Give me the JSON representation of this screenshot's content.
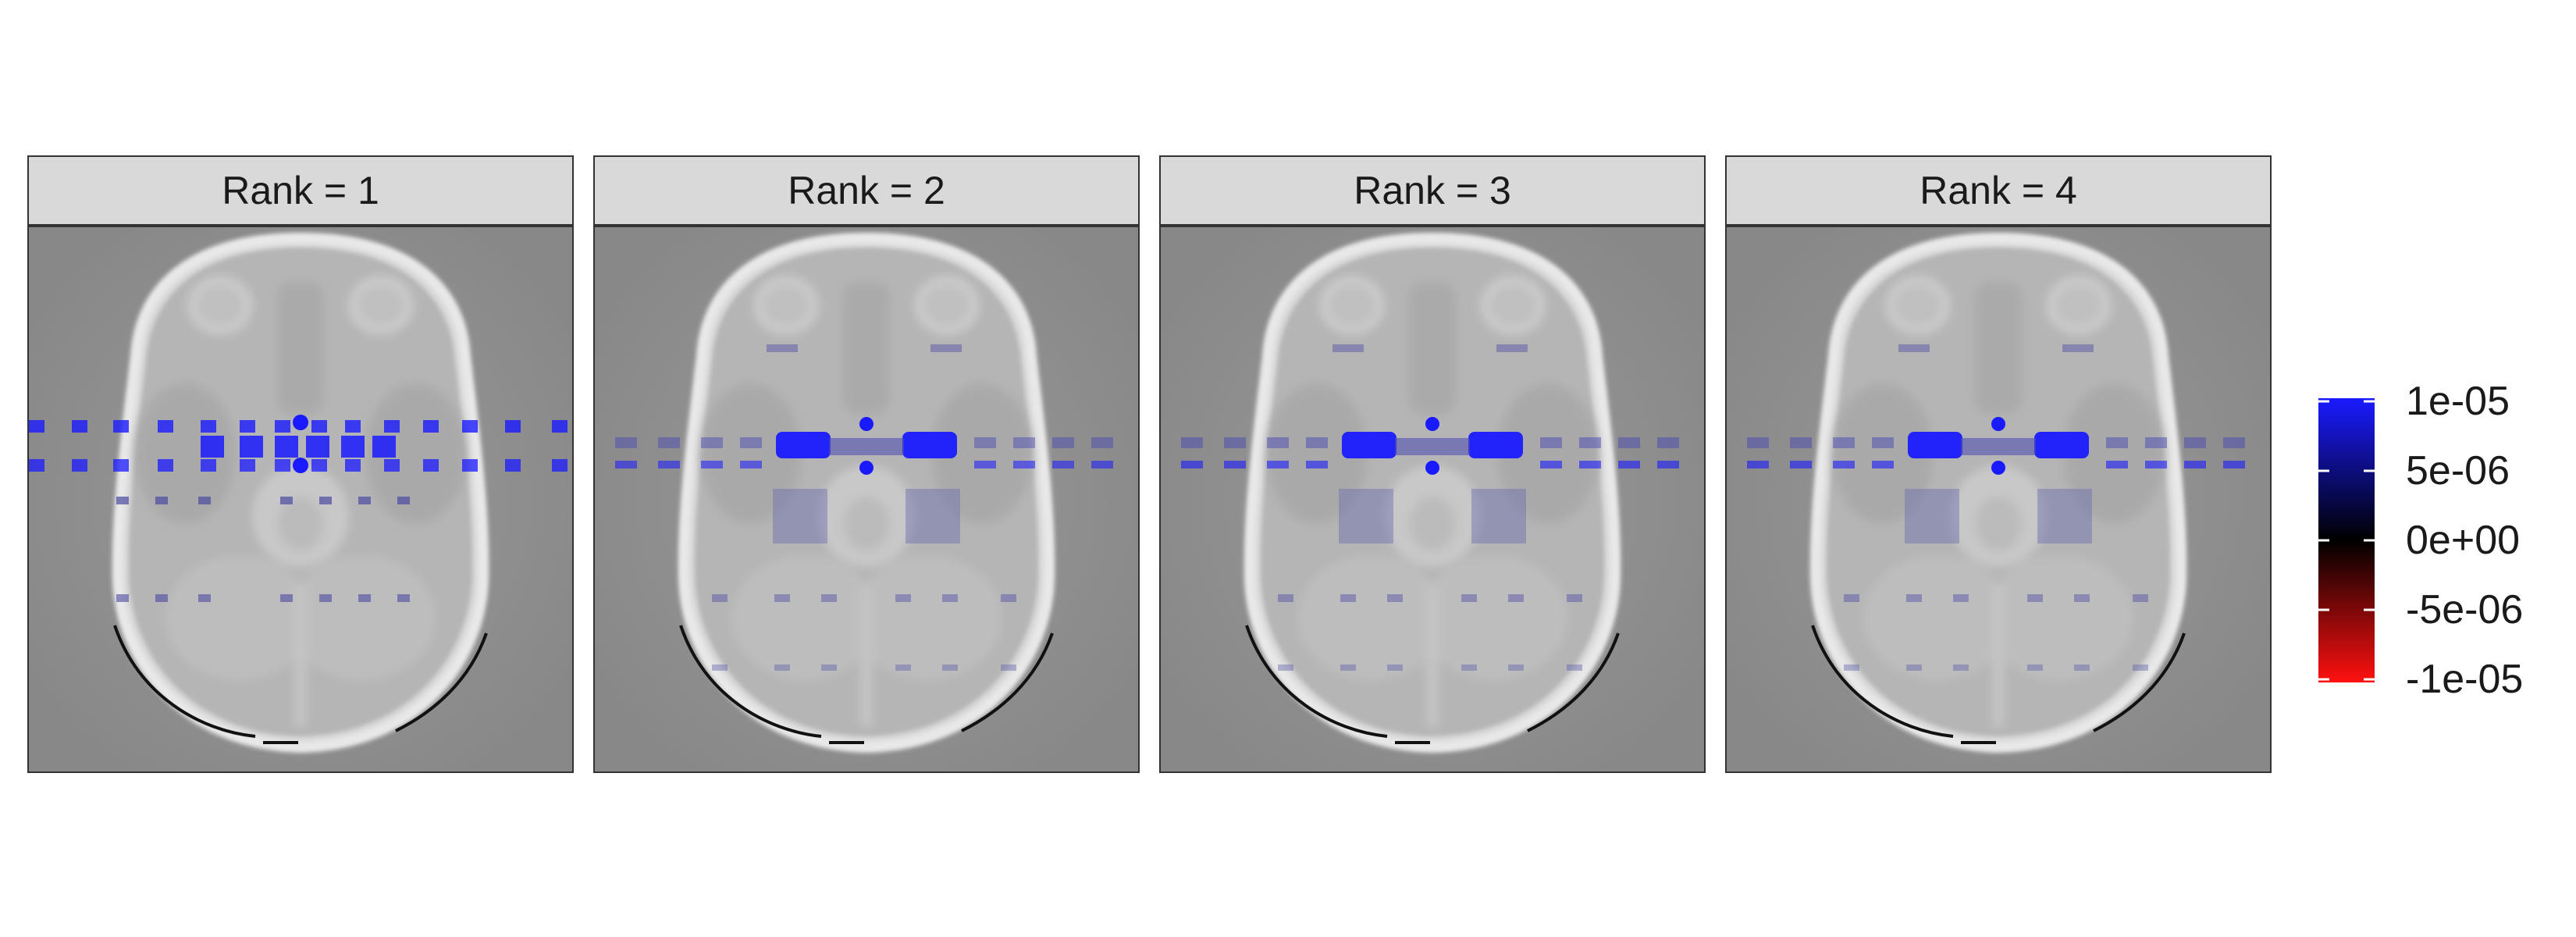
{
  "panels": [
    {
      "label": "Rank = 1",
      "intensity": 1.0,
      "pattern": "grid"
    },
    {
      "label": "Rank = 2",
      "intensity": 0.8,
      "pattern": "band"
    },
    {
      "label": "Rank = 3",
      "intensity": 0.85,
      "pattern": "band"
    },
    {
      "label": "Rank = 4",
      "intensity": 0.85,
      "pattern": "band"
    }
  ],
  "legend": {
    "labels": [
      "1e-05",
      "5e-06",
      "0e+00",
      "-5e-06",
      "-1e-05"
    ],
    "colors": {
      "high": "#1a1aff",
      "mid": "#000000",
      "low": "#ff1010"
    }
  },
  "colors": {
    "background": "#888888",
    "brain": "#b5b5b5",
    "skull": "#e8e8e8"
  }
}
